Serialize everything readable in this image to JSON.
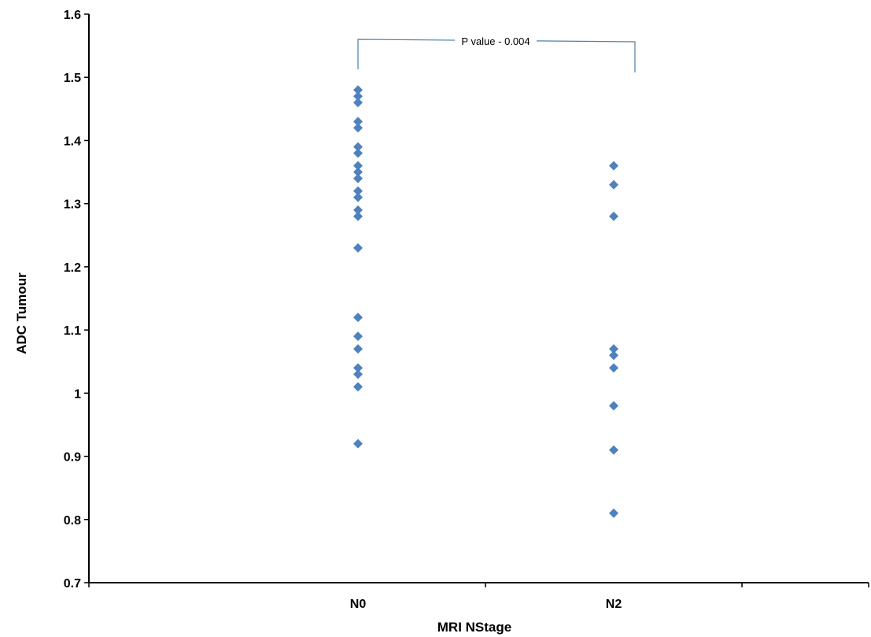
{
  "chart_data": {
    "type": "scatter",
    "title": "",
    "xlabel": "MRI NStage",
    "ylabel": "ADC Tumour",
    "categories": [
      "N0",
      "N2"
    ],
    "ylim": [
      0.7,
      1.6
    ],
    "yticks": [
      "0.7",
      "0.8",
      "0.9",
      "1",
      "1.1",
      "1.2",
      "1.3",
      "1.4",
      "1.5",
      "1.6"
    ],
    "grid": false,
    "marker": "diamond",
    "color": "#4f81bd",
    "series": [
      {
        "category": "N0",
        "values": [
          1.48,
          1.47,
          1.46,
          1.43,
          1.42,
          1.39,
          1.38,
          1.36,
          1.35,
          1.34,
          1.32,
          1.31,
          1.29,
          1.28,
          1.23,
          1.12,
          1.09,
          1.07,
          1.04,
          1.03,
          1.01,
          0.92
        ]
      },
      {
        "category": "N2",
        "values": [
          1.36,
          1.33,
          1.28,
          1.07,
          1.06,
          1.04,
          0.98,
          0.91,
          0.81
        ]
      }
    ],
    "annotation": {
      "text": "P value - 0.004",
      "between": [
        "N0",
        "N2"
      ],
      "bracket_color": "#4a7ea8"
    }
  }
}
